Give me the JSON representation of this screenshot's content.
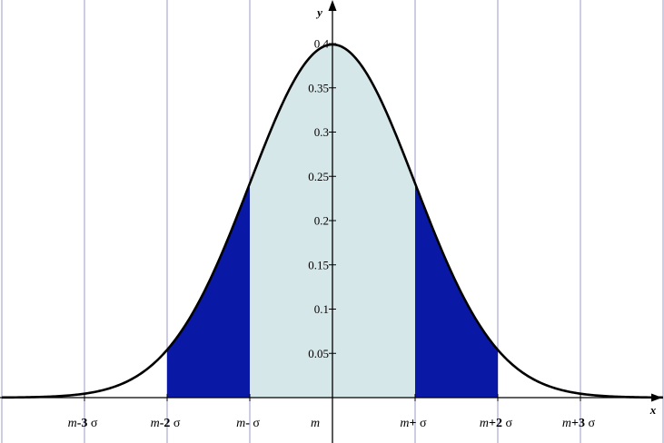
{
  "chart_data": {
    "type": "area",
    "title": "",
    "xlabel": "x",
    "ylabel": "y",
    "xlim": [
      -4.0,
      4.0
    ],
    "ylim": [
      0,
      0.45
    ],
    "grid": "vertical",
    "curve": {
      "name": "",
      "function": "standard normal density",
      "mean": 0,
      "sigma": 1,
      "color": "#000000"
    },
    "y_ticks": [
      {
        "value": 0.05,
        "label": "0.05"
      },
      {
        "value": 0.1,
        "label": "0.1"
      },
      {
        "value": 0.15,
        "label": "0.15"
      },
      {
        "value": 0.2,
        "label": "0.2"
      },
      {
        "value": 0.25,
        "label": "0.25"
      },
      {
        "value": 0.3,
        "label": "0.3"
      },
      {
        "value": 0.35,
        "label": "0.35"
      },
      {
        "value": 0.4,
        "label": "0.4"
      }
    ],
    "x_ticks": [
      {
        "value": -3,
        "label_parts": [
          "m",
          "-3",
          " σ"
        ]
      },
      {
        "value": -2,
        "label_parts": [
          "m",
          "-2",
          " σ"
        ]
      },
      {
        "value": -1,
        "label_parts": [
          "m",
          "-",
          " σ"
        ]
      },
      {
        "value": 0,
        "label_parts": [
          "m",
          "",
          ""
        ]
      },
      {
        "value": 1,
        "label_parts": [
          "m",
          "+",
          " σ"
        ]
      },
      {
        "value": 2,
        "label_parts": [
          "m",
          "+2",
          " σ"
        ]
      },
      {
        "value": 3,
        "label_parts": [
          "m",
          "+3",
          " σ"
        ]
      }
    ],
    "gridlines_x": [
      -4,
      -3,
      -2,
      -1,
      1,
      2,
      3,
      4
    ],
    "shaded_regions": [
      {
        "name": "center",
        "from": -1,
        "to": 1,
        "color": "#d6e7ea"
      },
      {
        "name": "left-tail",
        "from": -2,
        "to": -1,
        "color": "#0a18a6"
      },
      {
        "name": "right-tail",
        "from": 1,
        "to": 2,
        "color": "#0a18a6"
      }
    ],
    "colors": {
      "grid": "#9a9ac8",
      "axis": "#000000"
    }
  }
}
